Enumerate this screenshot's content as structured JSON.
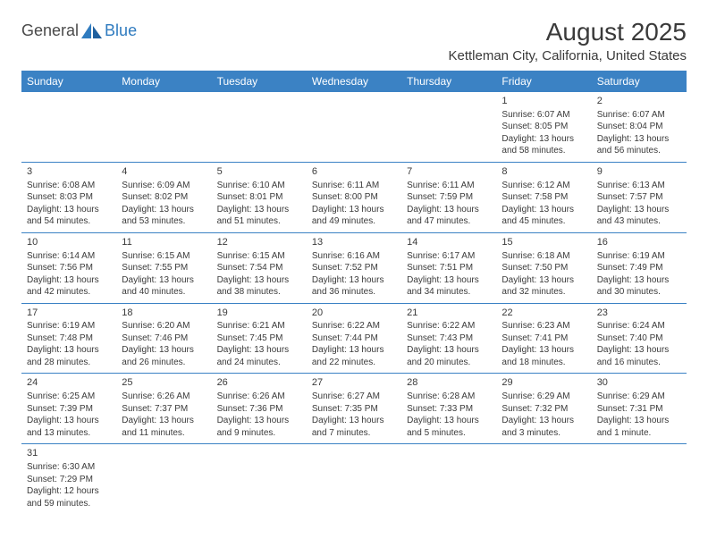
{
  "logo": {
    "textA": "General",
    "textB": "Blue"
  },
  "title": "August 2025",
  "location": "Kettleman City, California, United States",
  "colors": {
    "header_bg": "#3b82c4",
    "header_text": "#ffffff",
    "cell_border": "#3b82c4",
    "body_text": "#3a3a3a",
    "logo_gray": "#4a4a4a",
    "logo_blue": "#2f7bbf"
  },
  "weekdays": [
    "Sunday",
    "Monday",
    "Tuesday",
    "Wednesday",
    "Thursday",
    "Friday",
    "Saturday"
  ],
  "weeks": [
    [
      null,
      null,
      null,
      null,
      null,
      {
        "d": "1",
        "sr": "Sunrise: 6:07 AM",
        "ss": "Sunset: 8:05 PM",
        "dl1": "Daylight: 13 hours",
        "dl2": "and 58 minutes."
      },
      {
        "d": "2",
        "sr": "Sunrise: 6:07 AM",
        "ss": "Sunset: 8:04 PM",
        "dl1": "Daylight: 13 hours",
        "dl2": "and 56 minutes."
      }
    ],
    [
      {
        "d": "3",
        "sr": "Sunrise: 6:08 AM",
        "ss": "Sunset: 8:03 PM",
        "dl1": "Daylight: 13 hours",
        "dl2": "and 54 minutes."
      },
      {
        "d": "4",
        "sr": "Sunrise: 6:09 AM",
        "ss": "Sunset: 8:02 PM",
        "dl1": "Daylight: 13 hours",
        "dl2": "and 53 minutes."
      },
      {
        "d": "5",
        "sr": "Sunrise: 6:10 AM",
        "ss": "Sunset: 8:01 PM",
        "dl1": "Daylight: 13 hours",
        "dl2": "and 51 minutes."
      },
      {
        "d": "6",
        "sr": "Sunrise: 6:11 AM",
        "ss": "Sunset: 8:00 PM",
        "dl1": "Daylight: 13 hours",
        "dl2": "and 49 minutes."
      },
      {
        "d": "7",
        "sr": "Sunrise: 6:11 AM",
        "ss": "Sunset: 7:59 PM",
        "dl1": "Daylight: 13 hours",
        "dl2": "and 47 minutes."
      },
      {
        "d": "8",
        "sr": "Sunrise: 6:12 AM",
        "ss": "Sunset: 7:58 PM",
        "dl1": "Daylight: 13 hours",
        "dl2": "and 45 minutes."
      },
      {
        "d": "9",
        "sr": "Sunrise: 6:13 AM",
        "ss": "Sunset: 7:57 PM",
        "dl1": "Daylight: 13 hours",
        "dl2": "and 43 minutes."
      }
    ],
    [
      {
        "d": "10",
        "sr": "Sunrise: 6:14 AM",
        "ss": "Sunset: 7:56 PM",
        "dl1": "Daylight: 13 hours",
        "dl2": "and 42 minutes."
      },
      {
        "d": "11",
        "sr": "Sunrise: 6:15 AM",
        "ss": "Sunset: 7:55 PM",
        "dl1": "Daylight: 13 hours",
        "dl2": "and 40 minutes."
      },
      {
        "d": "12",
        "sr": "Sunrise: 6:15 AM",
        "ss": "Sunset: 7:54 PM",
        "dl1": "Daylight: 13 hours",
        "dl2": "and 38 minutes."
      },
      {
        "d": "13",
        "sr": "Sunrise: 6:16 AM",
        "ss": "Sunset: 7:52 PM",
        "dl1": "Daylight: 13 hours",
        "dl2": "and 36 minutes."
      },
      {
        "d": "14",
        "sr": "Sunrise: 6:17 AM",
        "ss": "Sunset: 7:51 PM",
        "dl1": "Daylight: 13 hours",
        "dl2": "and 34 minutes."
      },
      {
        "d": "15",
        "sr": "Sunrise: 6:18 AM",
        "ss": "Sunset: 7:50 PM",
        "dl1": "Daylight: 13 hours",
        "dl2": "and 32 minutes."
      },
      {
        "d": "16",
        "sr": "Sunrise: 6:19 AM",
        "ss": "Sunset: 7:49 PM",
        "dl1": "Daylight: 13 hours",
        "dl2": "and 30 minutes."
      }
    ],
    [
      {
        "d": "17",
        "sr": "Sunrise: 6:19 AM",
        "ss": "Sunset: 7:48 PM",
        "dl1": "Daylight: 13 hours",
        "dl2": "and 28 minutes."
      },
      {
        "d": "18",
        "sr": "Sunrise: 6:20 AM",
        "ss": "Sunset: 7:46 PM",
        "dl1": "Daylight: 13 hours",
        "dl2": "and 26 minutes."
      },
      {
        "d": "19",
        "sr": "Sunrise: 6:21 AM",
        "ss": "Sunset: 7:45 PM",
        "dl1": "Daylight: 13 hours",
        "dl2": "and 24 minutes."
      },
      {
        "d": "20",
        "sr": "Sunrise: 6:22 AM",
        "ss": "Sunset: 7:44 PM",
        "dl1": "Daylight: 13 hours",
        "dl2": "and 22 minutes."
      },
      {
        "d": "21",
        "sr": "Sunrise: 6:22 AM",
        "ss": "Sunset: 7:43 PM",
        "dl1": "Daylight: 13 hours",
        "dl2": "and 20 minutes."
      },
      {
        "d": "22",
        "sr": "Sunrise: 6:23 AM",
        "ss": "Sunset: 7:41 PM",
        "dl1": "Daylight: 13 hours",
        "dl2": "and 18 minutes."
      },
      {
        "d": "23",
        "sr": "Sunrise: 6:24 AM",
        "ss": "Sunset: 7:40 PM",
        "dl1": "Daylight: 13 hours",
        "dl2": "and 16 minutes."
      }
    ],
    [
      {
        "d": "24",
        "sr": "Sunrise: 6:25 AM",
        "ss": "Sunset: 7:39 PM",
        "dl1": "Daylight: 13 hours",
        "dl2": "and 13 minutes."
      },
      {
        "d": "25",
        "sr": "Sunrise: 6:26 AM",
        "ss": "Sunset: 7:37 PM",
        "dl1": "Daylight: 13 hours",
        "dl2": "and 11 minutes."
      },
      {
        "d": "26",
        "sr": "Sunrise: 6:26 AM",
        "ss": "Sunset: 7:36 PM",
        "dl1": "Daylight: 13 hours",
        "dl2": "and 9 minutes."
      },
      {
        "d": "27",
        "sr": "Sunrise: 6:27 AM",
        "ss": "Sunset: 7:35 PM",
        "dl1": "Daylight: 13 hours",
        "dl2": "and 7 minutes."
      },
      {
        "d": "28",
        "sr": "Sunrise: 6:28 AM",
        "ss": "Sunset: 7:33 PM",
        "dl1": "Daylight: 13 hours",
        "dl2": "and 5 minutes."
      },
      {
        "d": "29",
        "sr": "Sunrise: 6:29 AM",
        "ss": "Sunset: 7:32 PM",
        "dl1": "Daylight: 13 hours",
        "dl2": "and 3 minutes."
      },
      {
        "d": "30",
        "sr": "Sunrise: 6:29 AM",
        "ss": "Sunset: 7:31 PM",
        "dl1": "Daylight: 13 hours",
        "dl2": "and 1 minute."
      }
    ],
    [
      {
        "d": "31",
        "sr": "Sunrise: 6:30 AM",
        "ss": "Sunset: 7:29 PM",
        "dl1": "Daylight: 12 hours",
        "dl2": "and 59 minutes."
      },
      null,
      null,
      null,
      null,
      null,
      null
    ]
  ]
}
